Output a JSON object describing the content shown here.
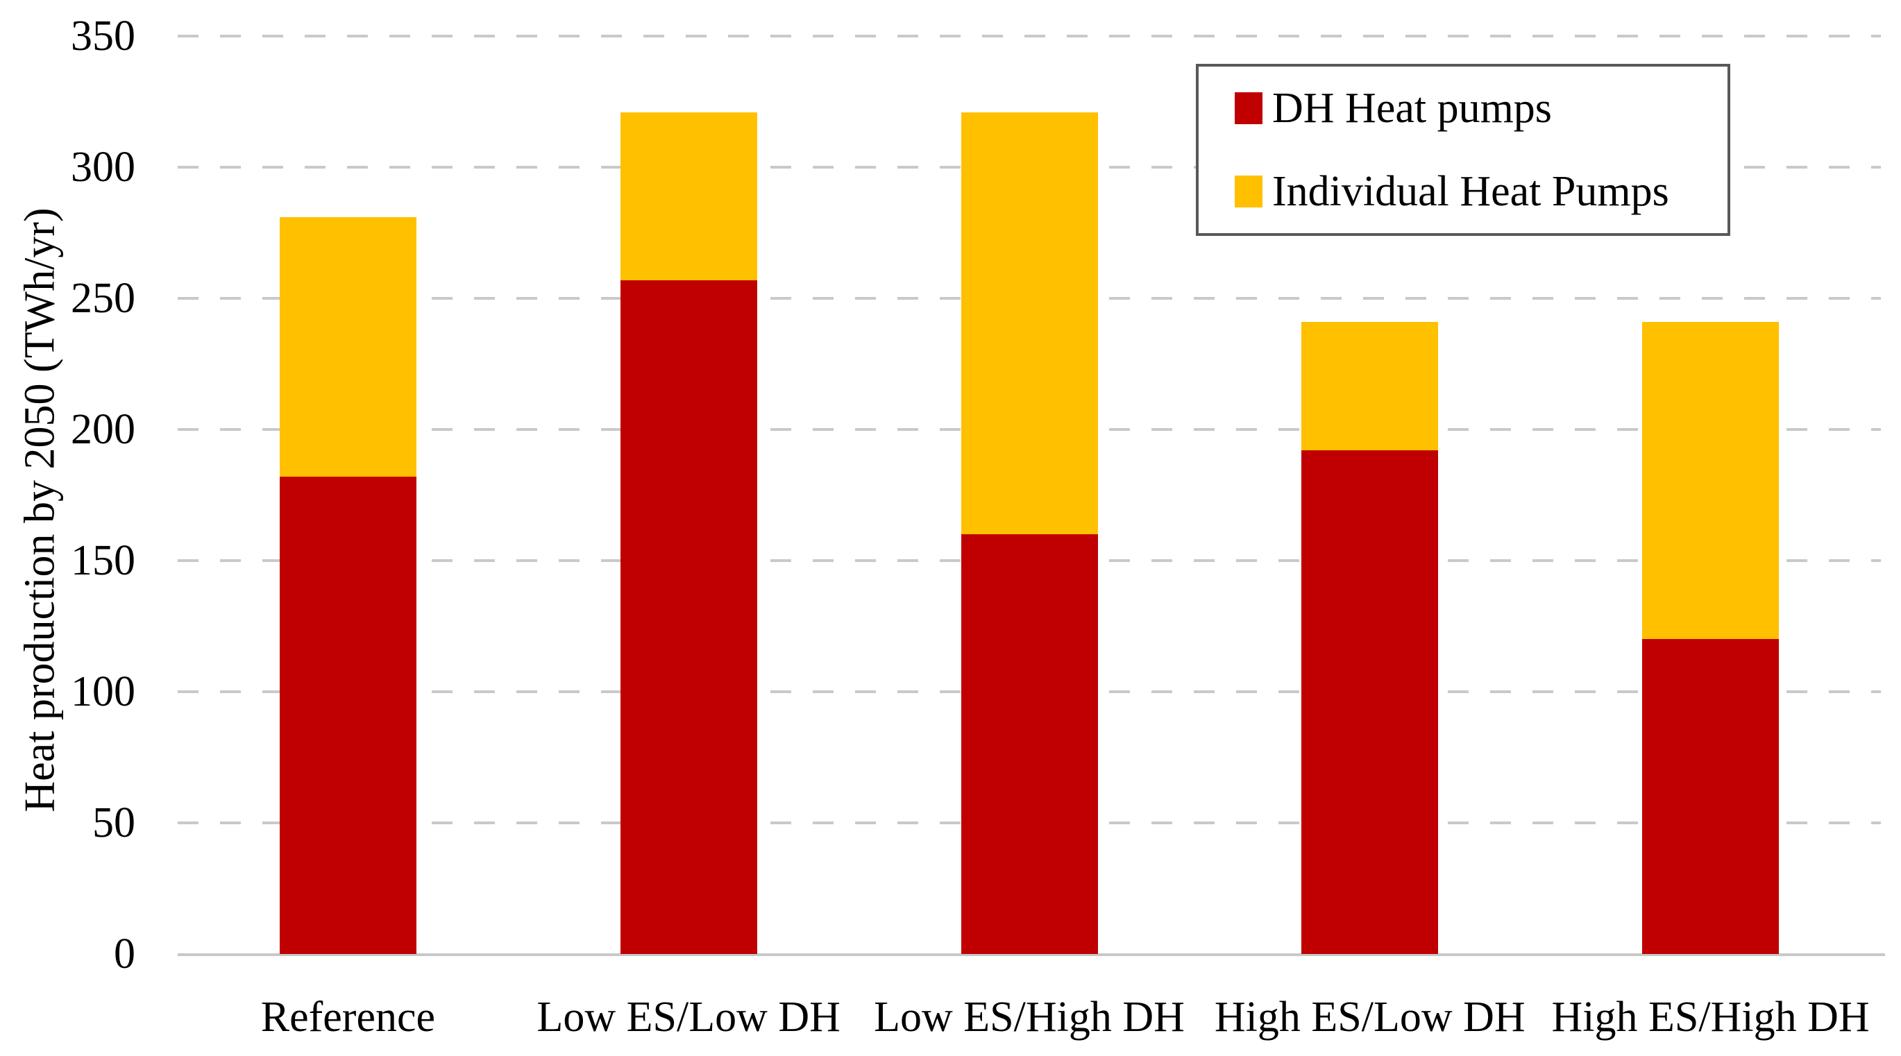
{
  "chart_data": {
    "type": "bar",
    "stacked": true,
    "title": "",
    "categories": [
      "Reference",
      "Low ES/Low DH",
      "Low ES/High DH",
      "High ES/Low DH",
      "High ES/High DH"
    ],
    "series": [
      {
        "name": "DH Heat pumps",
        "color": "#C00000",
        "values": [
          182,
          257,
          160,
          192,
          120
        ]
      },
      {
        "name": "Individual Heat Pumps",
        "color": "#FFC000",
        "values": [
          99,
          64,
          161,
          49,
          121
        ]
      }
    ],
    "stack_totals": [
      281,
      321,
      321,
      241,
      241
    ],
    "xlabel": "",
    "ylabel": "Heat production by 2050 (TWh/yr)",
    "ylim": [
      0,
      350
    ],
    "ytick_interval": 50,
    "yticks": [
      0,
      50,
      100,
      150,
      200,
      250,
      300,
      350
    ],
    "grid": "horizontal-dashed",
    "gridline_color": "#C9C9C9",
    "axis_line_color": "#C8C8C8",
    "text_color": "#000000",
    "legend": {
      "position": "top-right",
      "border_color": "#595959"
    }
  }
}
